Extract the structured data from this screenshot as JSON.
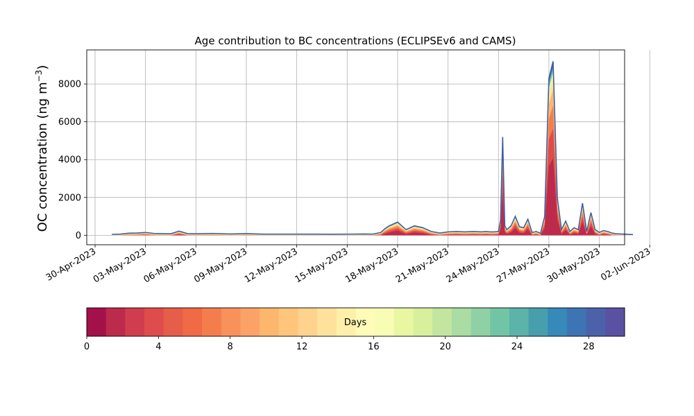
{
  "chart_data": {
    "type": "area",
    "title": "Age contribution to BC concentrations (ECLIPSEv6 and CAMS)",
    "ylabel": "OC concentration (ng m",
    "ylabel_sup": "−3",
    "ylabel_close": ")",
    "xlim": [
      "2023-04-30T00:00",
      "2023-06-01T00:00"
    ],
    "ylim": [
      -500,
      9800
    ],
    "grid": true,
    "x_ticks": [
      "30-Apr-2023",
      "03-May-2023",
      "06-May-2023",
      "09-May-2023",
      "12-May-2023",
      "15-May-2023",
      "18-May-2023",
      "21-May-2023",
      "24-May-2023",
      "27-May-2023",
      "30-May-2023",
      "02-Jun-2023"
    ],
    "y_ticks": [
      0,
      2000,
      4000,
      6000,
      8000
    ],
    "total_series": {
      "name": "",
      "x": [
        "2023-05-01T00:00",
        "2023-05-01T12:00",
        "2023-05-02T00:00",
        "2023-05-02T12:00",
        "2023-05-03T00:00",
        "2023-05-03T12:00",
        "2023-05-04T00:00",
        "2023-05-04T12:00",
        "2023-05-05T00:00",
        "2023-05-05T12:00",
        "2023-05-06T00:00",
        "2023-05-07T00:00",
        "2023-05-08T00:00",
        "2023-05-09T00:00",
        "2023-05-10T00:00",
        "2023-05-11T00:00",
        "2023-05-12T00:00",
        "2023-05-13T00:00",
        "2023-05-14T00:00",
        "2023-05-15T00:00",
        "2023-05-16T00:00",
        "2023-05-16T12:00",
        "2023-05-17T00:00",
        "2023-05-17T06:00",
        "2023-05-17T12:00",
        "2023-05-18T00:00",
        "2023-05-18T12:00",
        "2023-05-19T00:00",
        "2023-05-19T12:00",
        "2023-05-20T00:00",
        "2023-05-20T12:00",
        "2023-05-21T00:00",
        "2023-05-21T12:00",
        "2023-05-22T00:00",
        "2023-05-22T12:00",
        "2023-05-23T00:00",
        "2023-05-23T06:00",
        "2023-05-23T12:00",
        "2023-05-23T18:00",
        "2023-05-24T00:00",
        "2023-05-24T03:00",
        "2023-05-24T06:00",
        "2023-05-24T09:00",
        "2023-05-24T12:00",
        "2023-05-24T18:00",
        "2023-05-25T00:00",
        "2023-05-25T06:00",
        "2023-05-25T12:00",
        "2023-05-25T18:00",
        "2023-05-26T00:00",
        "2023-05-26T06:00",
        "2023-05-26T12:00",
        "2023-05-26T18:00",
        "2023-05-27T00:00",
        "2023-05-27T06:00",
        "2023-05-27T12:00",
        "2023-05-27T18:00",
        "2023-05-28T00:00",
        "2023-05-28T06:00",
        "2023-05-28T12:00",
        "2023-05-28T18:00",
        "2023-05-29T00:00",
        "2023-05-29T06:00",
        "2023-05-29T12:00",
        "2023-05-29T18:00",
        "2023-05-30T00:00",
        "2023-05-30T06:00",
        "2023-05-30T12:00",
        "2023-05-30T18:00",
        "2023-05-31T00:00",
        "2023-05-31T12:00",
        "2023-06-01T00:00"
      ],
      "values": [
        50,
        60,
        110,
        120,
        150,
        100,
        90,
        80,
        220,
        90,
        80,
        100,
        70,
        90,
        60,
        60,
        60,
        60,
        55,
        60,
        70,
        60,
        150,
        350,
        500,
        700,
        300,
        500,
        400,
        200,
        120,
        180,
        200,
        180,
        200,
        180,
        200,
        180,
        180,
        200,
        800,
        5200,
        500,
        300,
        500,
        1000,
        450,
        400,
        850,
        150,
        200,
        100,
        1000,
        8300,
        9200,
        2000,
        300,
        750,
        200,
        400,
        300,
        1700,
        200,
        1200,
        300,
        150,
        250,
        200,
        120,
        80,
        60,
        40
      ]
    },
    "colorbar": {
      "label": "Days",
      "range": [
        0,
        30
      ],
      "ticks": [
        0,
        4,
        8,
        12,
        16,
        20,
        24,
        28
      ],
      "colors": [
        "#a4104a",
        "#bc2a4c",
        "#d03d4e",
        "#de4c4b",
        "#e65d49",
        "#ef6a45",
        "#f47d4d",
        "#f8915a",
        "#fba367",
        "#fdb66e",
        "#fec57b",
        "#fed38d",
        "#fee29c",
        "#fff0a9",
        "#fffbb8",
        "#f8fcb4",
        "#e9f6a2",
        "#d8ef9c",
        "#c2e69f",
        "#aadca4",
        "#8fd1a4",
        "#72c5a4",
        "#5bb3a9",
        "#479ead",
        "#3689b9",
        "#3d75b4",
        "#4b62ab",
        "#5b51a2"
      ]
    }
  }
}
